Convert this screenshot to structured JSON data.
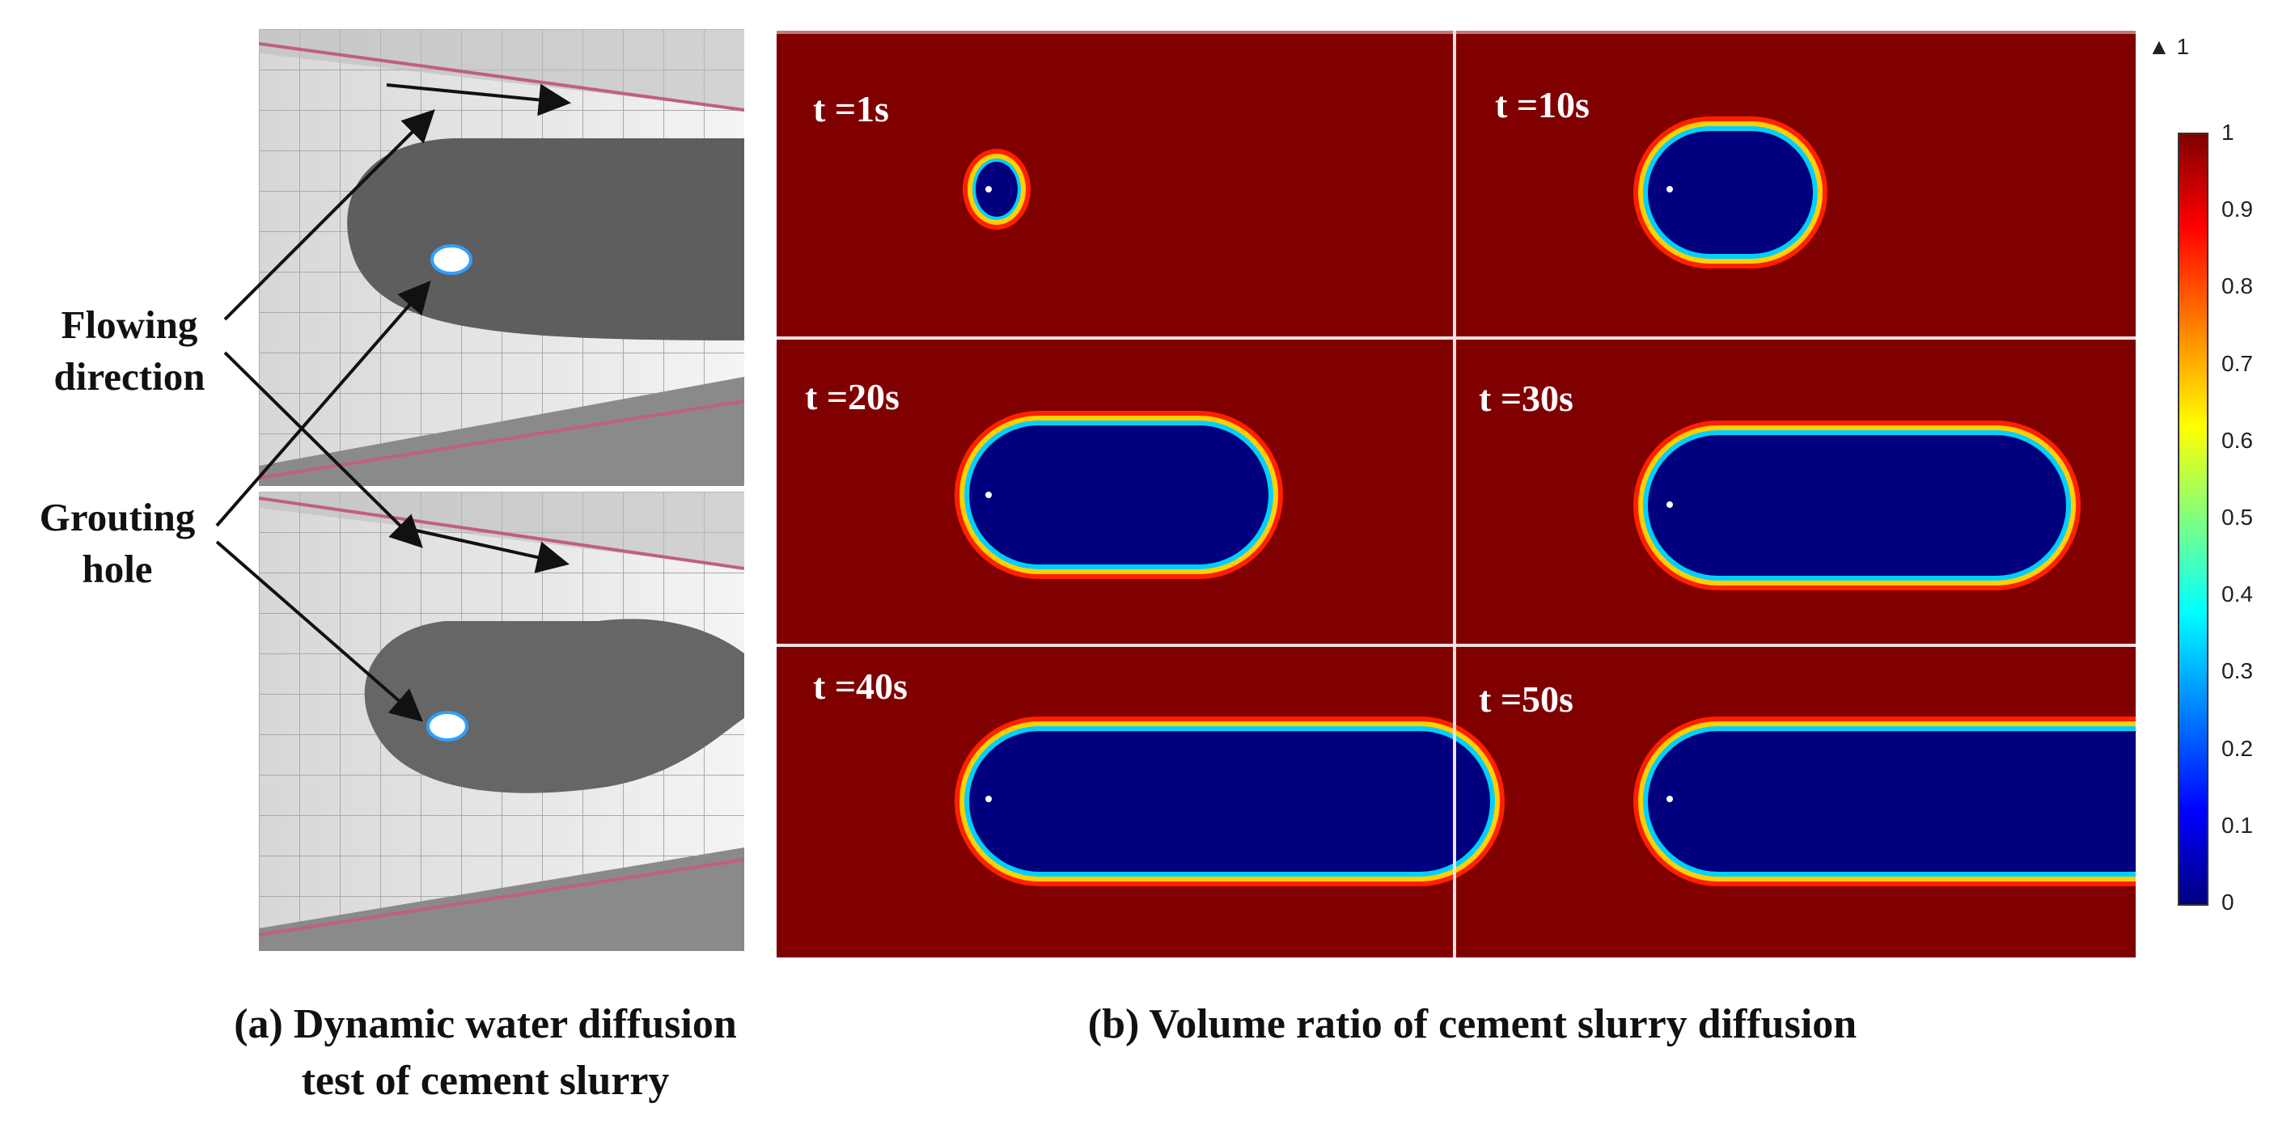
{
  "annotations": {
    "flowing_line1": "Flowing",
    "flowing_line2": "direction",
    "grouting_line1": "Grouting",
    "grouting_line2": "hole"
  },
  "captions": {
    "a_line1": "(a) Dynamic water diffusion",
    "a_line2": "test of cement slurry",
    "b": "(b) Volume ratio of cement slurry diffusion"
  },
  "simulation": {
    "panels": [
      {
        "label": "t =1s"
      },
      {
        "label": "t =10s"
      },
      {
        "label": "t =20s"
      },
      {
        "label": "t =30s"
      },
      {
        "label": "t =40s"
      },
      {
        "label": "t =50s"
      }
    ]
  },
  "colorbar": {
    "max_marker": "▲ 1",
    "ticks": [
      "1",
      "0.9",
      "0.8",
      "0.7",
      "0.6",
      "0.5",
      "0.4",
      "0.3",
      "0.2",
      "0.1",
      "0"
    ],
    "colors": {
      "high": "#800000",
      "low": "#00007f"
    }
  }
}
